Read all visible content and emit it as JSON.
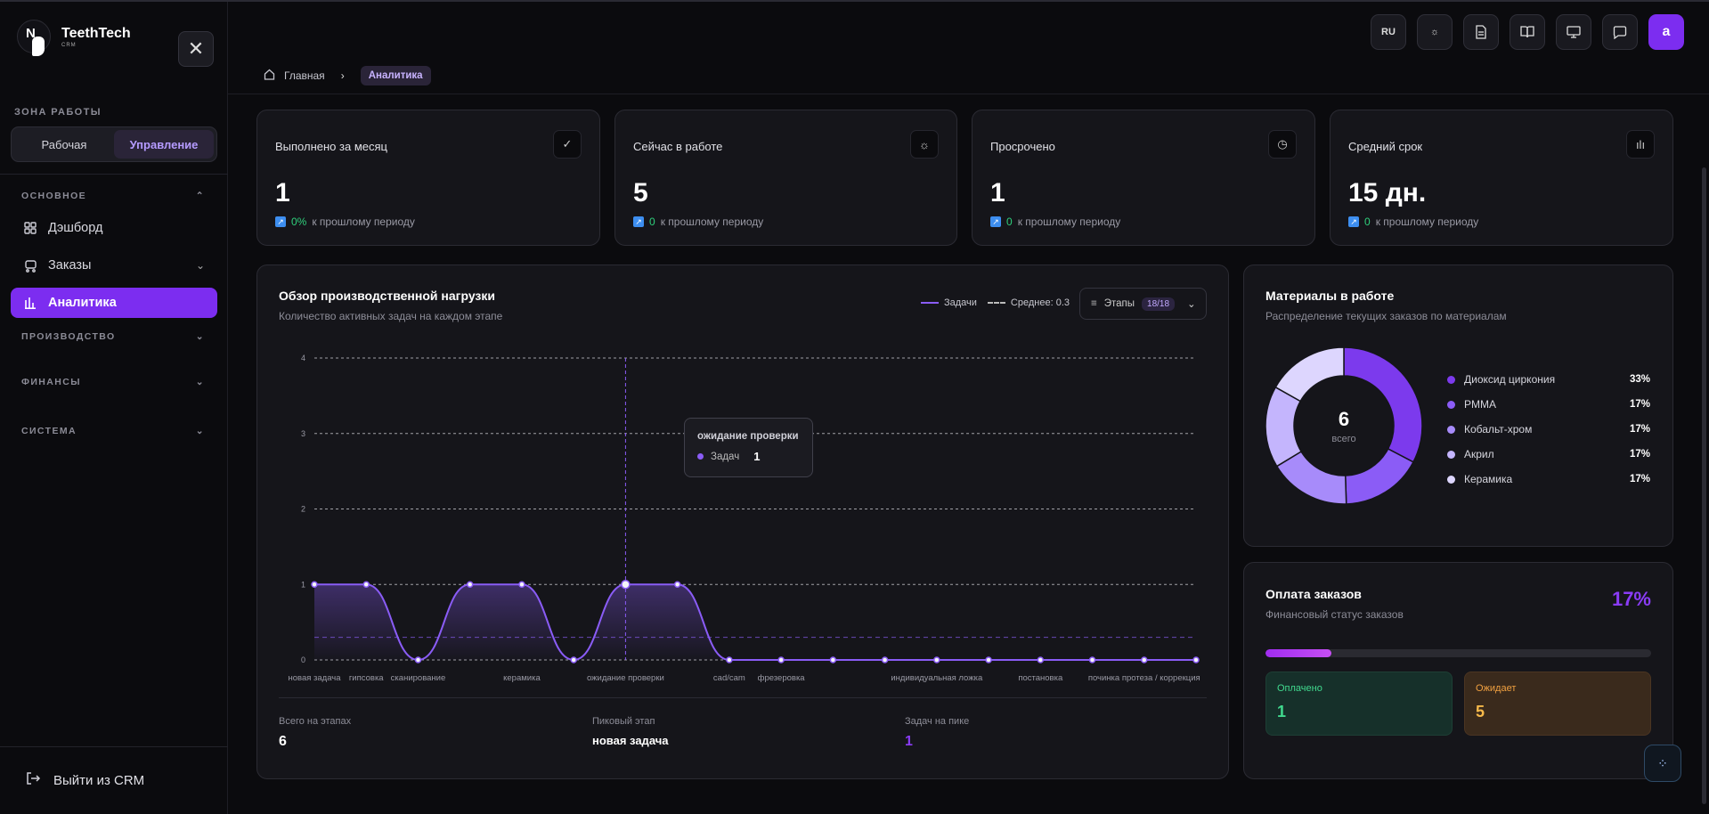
{
  "app": {
    "name": "TeethTech",
    "sub": "CRM",
    "logo_letter": "N"
  },
  "sidebar": {
    "zone_label": "ЗОНА РАБОТЫ",
    "zone_options": [
      "Рабочая",
      "Управление"
    ],
    "sections": {
      "main": "ОСНОВНОЕ",
      "production": "ПРОИЗВОДСТВО",
      "finance": "ФИНАНСЫ",
      "system": "СИСТЕМА"
    },
    "items": {
      "dashboard": "Дэшборд",
      "orders": "Заказы",
      "analytics": "Аналитика"
    },
    "logout": "Выйти из CRM"
  },
  "header": {
    "breadcrumb_home": "Главная",
    "breadcrumb_current": "Аналитика",
    "lang": "RU",
    "avatar_letter": "a"
  },
  "kpis": [
    {
      "title": "Выполнено за месяц",
      "value": "1",
      "delta": "0%",
      "delta_text": "к прошлому периоду",
      "icon": "check-icon"
    },
    {
      "title": "Сейчас в работе",
      "value": "5",
      "delta": "0",
      "delta_text": "к прошлому периоду",
      "icon": "sun-icon"
    },
    {
      "title": "Просрочено",
      "value": "1",
      "delta": "0",
      "delta_text": "к прошлому периоду",
      "icon": "clock-icon"
    },
    {
      "title": "Средний срок",
      "value": "15 дн.",
      "delta": "0",
      "delta_text": "к прошлому периоду",
      "icon": "bar-chart-icon"
    }
  ],
  "load_chart": {
    "title": "Обзор производственной нагрузки",
    "subtitle": "Количество активных задач на каждом этапе",
    "legend_tasks": "Задачи",
    "legend_avg": "Среднее: 0.3",
    "stages_label": "Этапы",
    "stages_badge": "18/18",
    "tooltip_title": "ожидание проверки",
    "tooltip_label": "Задач",
    "tooltip_value": "1",
    "footer": {
      "total_label": "Всего на этапах",
      "total_value": "6",
      "peak_label": "Пиковый этап",
      "peak_value": "новая задача",
      "peak_tasks_label": "Задач на пике",
      "peak_tasks_value": "1"
    }
  },
  "chart_data": {
    "type": "line",
    "title": "Обзор производственной нагрузки",
    "ylim": [
      0,
      4
    ],
    "yticks": [
      "0",
      "1",
      "2",
      "3",
      "4"
    ],
    "x_labels": [
      {
        "i": 0,
        "text": "новая задача"
      },
      {
        "i": 1,
        "text": "гипсовка"
      },
      {
        "i": 2,
        "text": "сканирование"
      },
      {
        "i": 4,
        "text": "керамика"
      },
      {
        "i": 6,
        "text": "ожидание проверки"
      },
      {
        "i": 8,
        "text": "cad/cam"
      },
      {
        "i": 9,
        "text": "фрезеровка"
      },
      {
        "i": 12,
        "text": "индивидуальная ложка"
      },
      {
        "i": 14,
        "text": "постановка"
      },
      {
        "i": 16,
        "text": "починка протеза / коррекция"
      }
    ],
    "series": [
      {
        "name": "Задачи",
        "values": [
          1,
          1,
          0,
          1,
          1,
          0,
          1,
          1,
          0,
          0,
          0,
          0,
          0,
          0,
          0,
          0,
          0,
          0
        ]
      }
    ],
    "average": 0.3,
    "highlight_index": 6,
    "colors": {
      "line": "#8a5cf6",
      "grid": "#cfcfd6"
    }
  },
  "materials": {
    "title": "Материалы в работе",
    "subtitle": "Распределение текущих заказов по материалам",
    "total": "6",
    "total_label": "всего",
    "items": [
      {
        "name": "Диоксид циркония",
        "pct": "33%",
        "value": 33,
        "color": "#7c3aed"
      },
      {
        "name": "PMMA",
        "pct": "17%",
        "value": 17,
        "color": "#8b5cf6"
      },
      {
        "name": "Кобальт-хром",
        "pct": "17%",
        "value": 17,
        "color": "#a78bfa"
      },
      {
        "name": "Акрил",
        "pct": "17%",
        "value": 17,
        "color": "#c4b5fd"
      },
      {
        "name": "Керамика",
        "pct": "17%",
        "value": 17,
        "color": "#ddd6fe"
      }
    ]
  },
  "payments": {
    "title": "Оплата заказов",
    "subtitle": "Финансовый статус заказов",
    "pct": "17%",
    "progress": 0.17,
    "paid_label": "Оплачено",
    "paid_value": "1",
    "wait_label": "Ожидает",
    "wait_value": "5"
  }
}
